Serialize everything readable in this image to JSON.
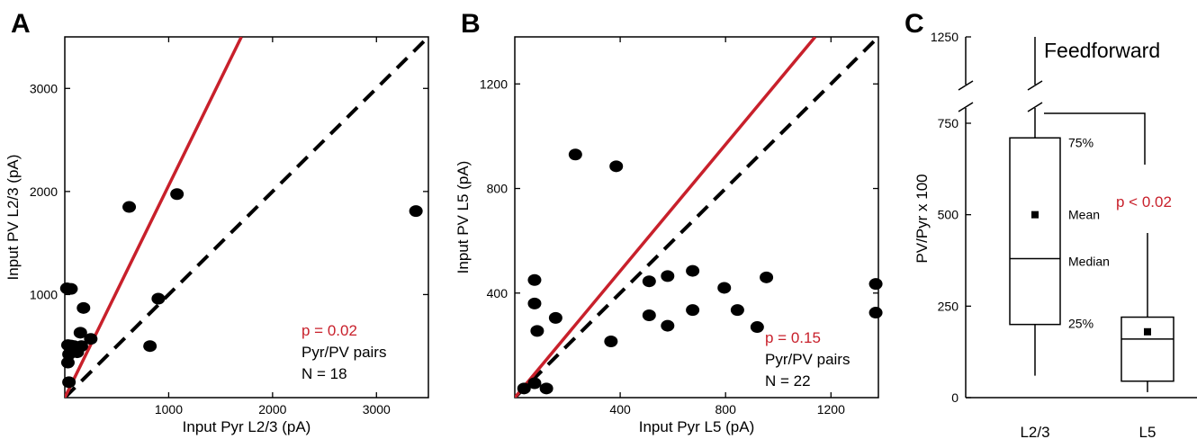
{
  "panel_letters": [
    "A",
    "B",
    "C"
  ],
  "colors": {
    "identity": "#000000",
    "fit": "#c8202b",
    "point": "#000000",
    "pvalue": "#c8202b"
  },
  "chart_data": [
    {
      "type": "scatter",
      "panel": "A",
      "xlabel": "Input Pyr L2/3 (pA)",
      "ylabel": "Input PV L2/3 (pA)",
      "xlim": [
        0,
        3500
      ],
      "ylim": [
        0,
        3500
      ],
      "xticks": [
        1000,
        2000,
        3000
      ],
      "yticks": [
        1000,
        2000,
        3000
      ],
      "grid": false,
      "points": [
        [
          20,
          1060
        ],
        [
          60,
          1055
        ],
        [
          620,
          1850
        ],
        [
          1080,
          1975
        ],
        [
          3380,
          1810
        ],
        [
          180,
          870
        ],
        [
          900,
          960
        ],
        [
          150,
          630
        ],
        [
          250,
          570
        ],
        [
          160,
          500
        ],
        [
          90,
          500
        ],
        [
          30,
          510
        ],
        [
          60,
          505
        ],
        [
          120,
          440
        ],
        [
          40,
          420
        ],
        [
          30,
          340
        ],
        [
          820,
          500
        ],
        [
          40,
          150
        ]
      ],
      "fit_line": [
        [
          0,
          0
        ],
        [
          1700,
          3500
        ]
      ],
      "identity_line": [
        [
          0,
          0
        ],
        [
          3500,
          3500
        ]
      ],
      "pvalue": "p = 0.02",
      "pairs_label": "Pyr/PV pairs",
      "n_label": "N = 18"
    },
    {
      "type": "scatter",
      "panel": "B",
      "xlabel": "Input Pyr L5 (pA)",
      "ylabel": "Input PV L5 (pA)",
      "xlim": [
        0,
        1380
      ],
      "ylim": [
        0,
        1380
      ],
      "xticks": [
        400,
        800,
        1200
      ],
      "yticks": [
        400,
        800,
        1200
      ],
      "grid": false,
      "points": [
        [
          230,
          930
        ],
        [
          385,
          885
        ],
        [
          75,
          450
        ],
        [
          75,
          360
        ],
        [
          155,
          305
        ],
        [
          85,
          255
        ],
        [
          365,
          215
        ],
        [
          510,
          445
        ],
        [
          580,
          465
        ],
        [
          675,
          485
        ],
        [
          510,
          315
        ],
        [
          580,
          275
        ],
        [
          675,
          335
        ],
        [
          795,
          420
        ],
        [
          845,
          335
        ],
        [
          920,
          270
        ],
        [
          955,
          460
        ],
        [
          1370,
          435
        ],
        [
          1370,
          325
        ],
        [
          75,
          55
        ],
        [
          35,
          35
        ],
        [
          120,
          35
        ]
      ],
      "fit_line": [
        [
          0,
          0
        ],
        [
          1140,
          1380
        ]
      ],
      "identity_line": [
        [
          0,
          0
        ],
        [
          1380,
          1380
        ]
      ],
      "pvalue": "p = 0.15",
      "pairs_label": "Pyr/PV pairs",
      "n_label": "N = 22"
    },
    {
      "type": "box",
      "panel": "C",
      "title": "Feedforward",
      "ylabel": "PV/Pyr x 100",
      "categories": [
        "L2/3",
        "L5"
      ],
      "yticks": [
        0,
        250,
        500,
        750,
        1250
      ],
      "axis_break_between": [
        800,
        1250
      ],
      "boxes": [
        {
          "name": "L2/3",
          "min": 60,
          "q1": 200,
          "median": 380,
          "q3": 710,
          "max": 1250,
          "mean": 500
        },
        {
          "name": "L5",
          "min": 15,
          "q1": 45,
          "median": 160,
          "q3": 220,
          "max": 450,
          "mean": 180
        }
      ],
      "box_labels": {
        "q3": "75%",
        "mean": "Mean",
        "median": "Median",
        "q1": "25%"
      },
      "pvalue": "p < 0.02"
    }
  ]
}
